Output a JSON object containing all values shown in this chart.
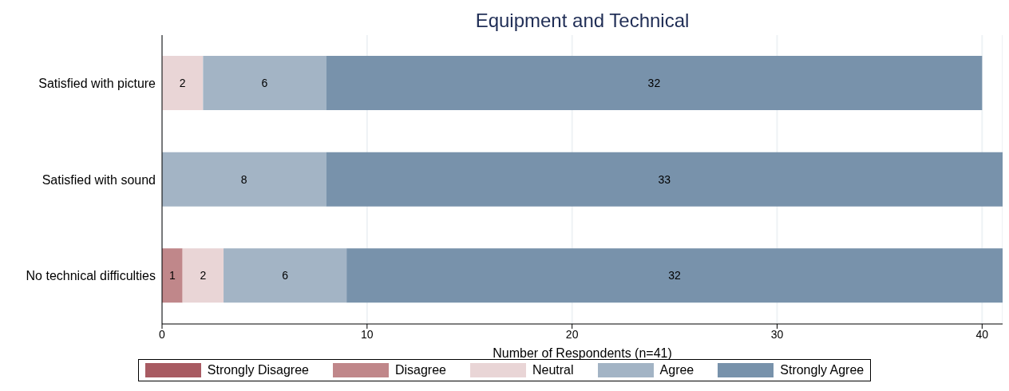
{
  "chart_data": {
    "type": "bar",
    "orientation": "horizontal",
    "stacked": true,
    "title": "Equipment and Technical",
    "xlabel": "Number of Respondents (n=41)",
    "categories": [
      "Satisfied with picture",
      "Satisfied with sound",
      "No technical difficulties"
    ],
    "series": [
      {
        "name": "Strongly Disagree",
        "color": "#a85b62",
        "values": [
          null,
          null,
          null
        ]
      },
      {
        "name": "Disagree",
        "color": "#c0878a",
        "values": [
          null,
          null,
          1
        ]
      },
      {
        "name": "Neutral",
        "color": "#e9d5d6",
        "values": [
          2,
          null,
          2
        ]
      },
      {
        "name": "Agree",
        "color": "#a3b4c5",
        "values": [
          6,
          8,
          6
        ]
      },
      {
        "name": "Strongly Agree",
        "color": "#7892ab",
        "values": [
          32,
          33,
          32
        ]
      }
    ],
    "xlim": [
      0,
      41
    ],
    "xticks": [
      0,
      10,
      20,
      30,
      40
    ],
    "grid": "x",
    "legend": "bottom",
    "data_labels": true
  }
}
